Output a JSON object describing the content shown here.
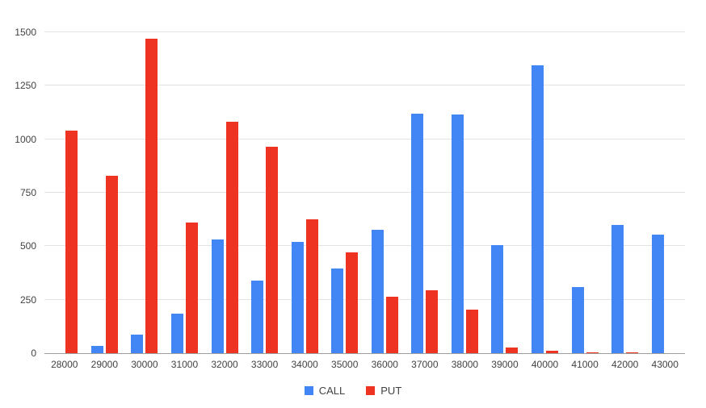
{
  "chart_data": {
    "type": "bar",
    "title": "",
    "xlabel": "",
    "ylabel": "",
    "categories": [
      "28000",
      "29000",
      "30000",
      "31000",
      "32000",
      "33000",
      "34000",
      "35000",
      "36000",
      "37000",
      "38000",
      "39000",
      "40000",
      "41000",
      "42000",
      "43000"
    ],
    "series": [
      {
        "name": "CALL",
        "color": "#4285F4",
        "values": [
          0,
          35,
          85,
          185,
          530,
          340,
          520,
          395,
          575,
          1120,
          1115,
          505,
          1345,
          310,
          600,
          555
        ]
      },
      {
        "name": "PUT",
        "color": "#EE3322",
        "values": [
          1040,
          830,
          1470,
          610,
          1080,
          965,
          625,
          470,
          265,
          295,
          205,
          25,
          10,
          5,
          5,
          0
        ]
      }
    ],
    "ylim": [
      0,
      1500
    ],
    "yticks": [
      0,
      250,
      500,
      750,
      1000,
      1250,
      1500
    ],
    "grid": true,
    "legend_position": "bottom",
    "background_color": "#ffffff",
    "gridline_color": "#e3e3e3",
    "axis_text_color": "#424242"
  }
}
